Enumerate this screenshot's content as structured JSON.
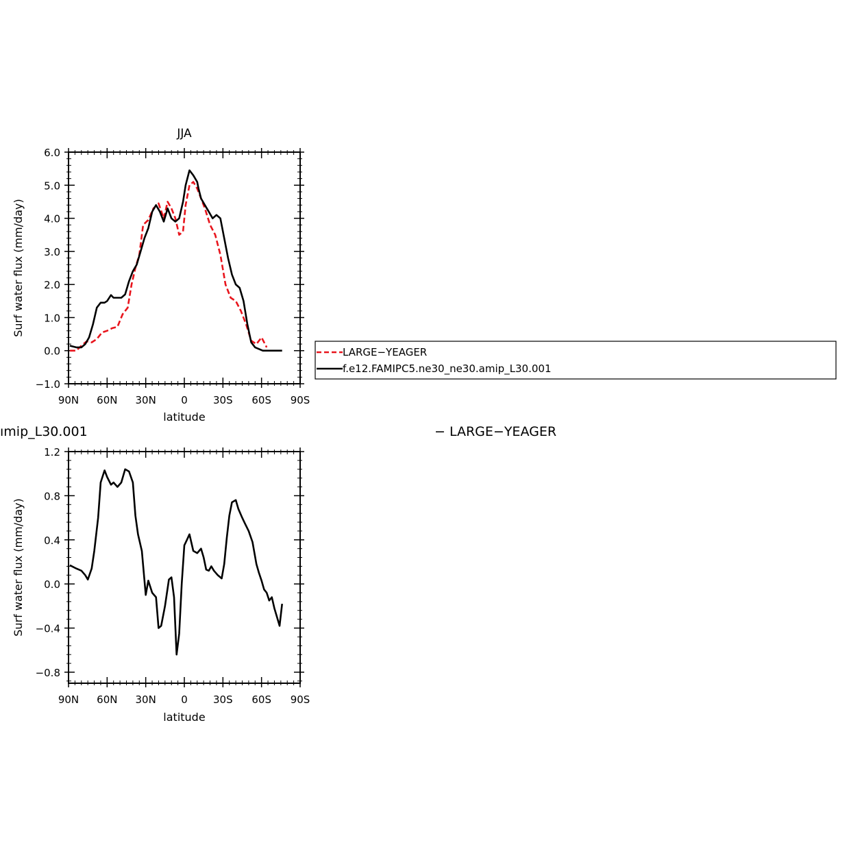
{
  "chart_data": [
    {
      "type": "line",
      "title": "JJA",
      "xlabel": "latitude",
      "ylabel": "Surf water flux (mm/day)",
      "xlim": [
        90,
        -90
      ],
      "ylim": [
        -1.0,
        6.0
      ],
      "yticks": [
        -1.0,
        0.0,
        1.0,
        2.0,
        3.0,
        4.0,
        5.0,
        6.0
      ],
      "ytick_labels": [
        "−1.0",
        "0.0",
        "1.0",
        "2.0",
        "3.0",
        "4.0",
        "5.0",
        "6.0"
      ],
      "xticks": [
        90,
        60,
        30,
        0,
        -30,
        -60,
        -90
      ],
      "xtick_labels": [
        "90N",
        "60N",
        "30N",
        "0",
        "30S",
        "60S",
        "90S"
      ],
      "legend_position": "right",
      "series": [
        {
          "name": "LARGE−YEAGER",
          "color": "#e8141c",
          "dash": "dashed",
          "x": [
            89,
            84,
            80,
            76,
            72,
            68,
            64,
            60,
            56,
            52,
            48,
            44,
            41,
            38,
            35,
            32,
            28,
            24,
            20,
            16,
            13,
            10,
            7,
            4,
            1,
            -1,
            -4,
            -7,
            -10,
            -13,
            -16,
            -20,
            -24,
            -28,
            -32,
            -36,
            -40,
            -44,
            -48,
            -52,
            -56,
            -60,
            -64,
            -68,
            -72,
            -76,
            -78,
            -80
          ],
          "y": [
            0.0,
            0.0,
            0.15,
            0.28,
            0.25,
            0.35,
            0.55,
            0.6,
            0.68,
            0.72,
            1.1,
            1.3,
            2.0,
            2.5,
            2.9,
            3.8,
            3.95,
            4.3,
            4.45,
            4.0,
            4.5,
            4.3,
            4.0,
            3.5,
            3.6,
            4.4,
            5.0,
            5.1,
            4.9,
            4.6,
            4.3,
            3.8,
            3.5,
            2.9,
            2.0,
            1.6,
            1.5,
            1.2,
            0.8,
            0.3,
            0.2,
            0.4,
            0.1,
            null,
            null,
            null,
            null,
            null
          ]
        },
        {
          "name": "f.e12.FAMIPC5.ne30_ne30.amip_L30.001",
          "color": "#000000",
          "dash": "solid",
          "x": [
            89,
            84,
            80,
            77,
            74,
            71,
            68,
            65,
            62,
            60,
            57,
            55,
            52,
            49,
            46,
            43,
            40,
            37,
            34,
            31,
            28,
            25,
            22,
            19,
            16,
            13,
            10,
            7,
            4,
            1,
            -1,
            -4,
            -7,
            -10,
            -11,
            -13,
            -16,
            -19,
            -22,
            -25,
            -28,
            -31,
            -34,
            -37,
            -40,
            -43,
            -46,
            -49,
            -52,
            -55,
            -58,
            -61,
            -64,
            -67,
            -70,
            -73,
            -76,
            -80,
            -84,
            -90
          ],
          "y": [
            0.15,
            0.1,
            0.1,
            0.2,
            0.4,
            0.8,
            1.3,
            1.45,
            1.45,
            1.5,
            1.68,
            1.6,
            1.6,
            1.6,
            1.7,
            2.1,
            2.4,
            2.6,
            3.0,
            3.4,
            3.7,
            4.2,
            4.4,
            4.2,
            3.9,
            4.3,
            4.0,
            3.9,
            4.0,
            4.5,
            5.0,
            5.45,
            5.3,
            5.1,
            4.9,
            4.6,
            4.4,
            4.2,
            4.0,
            4.1,
            4.0,
            3.4,
            2.8,
            2.3,
            2.0,
            1.9,
            1.5,
            0.8,
            0.25,
            0.1,
            0.05,
            0.0,
            0.0,
            0.0,
            0.0,
            0.0,
            0.0,
            null,
            null,
            null
          ]
        }
      ]
    },
    {
      "type": "line",
      "title": "ımip_L30.001",
      "title_right": "− LARGE−YEAGER",
      "xlabel": "latitude",
      "ylabel": "Surf water flux (mm/day)",
      "xlim": [
        90,
        -90
      ],
      "ylim": [
        -0.9,
        1.2
      ],
      "yticks": [
        -0.8,
        -0.4,
        0.0,
        0.4,
        0.8,
        1.2
      ],
      "ytick_labels": [
        "−0.8",
        "−0.4",
        "0.0",
        "0.4",
        "0.8",
        "1.2"
      ],
      "xticks": [
        90,
        60,
        30,
        0,
        -30,
        -60,
        -90
      ],
      "xtick_labels": [
        "90N",
        "60N",
        "30N",
        "0",
        "30S",
        "60S",
        "90S"
      ],
      "series": [
        {
          "name": "",
          "color": "#000000",
          "dash": "solid",
          "x": [
            89,
            84,
            80,
            77,
            75,
            72,
            70,
            67,
            65,
            62,
            60,
            57,
            55,
            52,
            49,
            46,
            43,
            40,
            38,
            36,
            33,
            30,
            28,
            25,
            22,
            20,
            18,
            15,
            12,
            10,
            8,
            6,
            4,
            2,
            0,
            -2,
            -4,
            -7,
            -10,
            -13,
            -15,
            -17,
            -19,
            -21,
            -23,
            -26,
            -29,
            -31,
            -33,
            -35,
            -37,
            -40,
            -42,
            -45,
            -47,
            -50,
            -53,
            -56,
            -58,
            -60,
            -62,
            -64,
            -66,
            -68,
            -70,
            -72,
            -74,
            -76,
            -78,
            -80
          ],
          "y": [
            0.17,
            0.14,
            0.12,
            0.08,
            0.04,
            0.14,
            0.3,
            0.6,
            0.92,
            1.03,
            0.97,
            0.9,
            0.92,
            0.88,
            0.92,
            1.04,
            1.02,
            0.92,
            0.62,
            0.45,
            0.3,
            -0.1,
            0.03,
            -0.08,
            -0.12,
            -0.4,
            -0.38,
            -0.2,
            0.04,
            0.06,
            -0.12,
            -0.64,
            -0.45,
            0.0,
            0.35,
            0.4,
            0.45,
            0.3,
            0.28,
            0.32,
            0.24,
            0.13,
            0.12,
            0.16,
            0.12,
            0.08,
            0.05,
            0.18,
            0.42,
            0.62,
            0.74,
            0.76,
            0.68,
            0.6,
            0.55,
            0.48,
            0.38,
            0.18,
            0.1,
            0.03,
            -0.05,
            -0.08,
            -0.15,
            -0.12,
            -0.22,
            -0.3,
            -0.38,
            -0.18,
            null,
            null
          ]
        }
      ]
    }
  ],
  "legend": {
    "items": [
      {
        "label": "LARGE−YEAGER",
        "color": "#e8141c",
        "dash": "dashed"
      },
      {
        "label": "f.e12.FAMIPC5.ne30_ne30.amip_L30.001",
        "color": "#000000",
        "dash": "solid"
      }
    ]
  }
}
